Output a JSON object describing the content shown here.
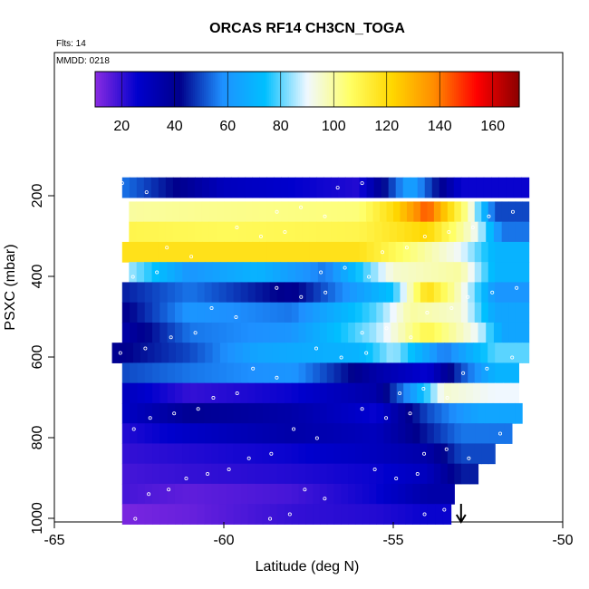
{
  "chart_data": {
    "type": "heatmap",
    "title": "ORCAS RF14 CH3CN_TOGA",
    "annotations": [
      "Flts: 14",
      "MMDD: 0218"
    ],
    "xlabel": "Latitude (deg N)",
    "ylabel": "PSXC (mbar)",
    "xlim": [
      -65,
      -50
    ],
    "ylim": [
      1000,
      200
    ],
    "x_ticks": [
      "-65",
      "-60",
      "-55",
      "-50"
    ],
    "y_ticks": [
      "200",
      "400",
      "600",
      "800",
      "1000"
    ],
    "grid": false,
    "colorbar": {
      "location": "top-inside",
      "range": [
        10,
        170
      ],
      "ticks": [
        "20",
        "40",
        "60",
        "80",
        "100",
        "120",
        "140",
        "160"
      ],
      "colormap": [
        "#8a2be2",
        "#0000cd",
        "#00008b",
        "#1e90ff",
        "#00bfff",
        "#f0f8ff",
        "#ffff66",
        "#ffd700",
        "#ff8c00",
        "#ff0000",
        "#8b0000"
      ]
    },
    "marker": {
      "type": "arrow-down",
      "latitude": -53
    },
    "rows": [
      {
        "p": 180,
        "segments": [
          [
            -63,
            55
          ],
          [
            -60,
            30
          ],
          [
            -56,
            22
          ],
          [
            -54.5,
            65
          ],
          [
            -53,
            25
          ]
        ],
        "xmin": -63.0,
        "xmax": -51.0
      },
      {
        "p": 240,
        "segments": [
          [
            -62.8,
            100
          ],
          [
            -60,
            102
          ],
          [
            -56,
            104
          ],
          [
            -55,
            120
          ],
          [
            -54,
            145
          ],
          [
            -52.8,
            100
          ],
          [
            -52,
            50
          ]
        ],
        "xmin": -62.8,
        "xmax": -51.0
      },
      {
        "p": 290,
        "segments": [
          [
            -62.8,
            110
          ],
          [
            -60,
            108
          ],
          [
            -56,
            110
          ],
          [
            -54,
            122
          ],
          [
            -52.5,
            90
          ],
          [
            -51.8,
            55
          ]
        ],
        "xmin": -62.8,
        "xmax": -51.0
      },
      {
        "p": 340,
        "segments": [
          [
            -63,
            118
          ],
          [
            -60,
            118
          ],
          [
            -56,
            118
          ],
          [
            -53,
            90
          ],
          [
            -52,
            70
          ]
        ],
        "xmin": -63.0,
        "xmax": -51.0
      },
      {
        "p": 390,
        "segments": [
          [
            -62.8,
            85
          ],
          [
            -61,
            60
          ],
          [
            -59,
            70
          ],
          [
            -57,
            55
          ],
          [
            -55,
            95
          ],
          [
            -53,
            100
          ],
          [
            -52,
            70
          ]
        ],
        "xmin": -62.8,
        "xmax": -51.0
      },
      {
        "p": 440,
        "segments": [
          [
            -63,
            45
          ],
          [
            -61,
            55
          ],
          [
            -58,
            40
          ],
          [
            -55,
            75
          ],
          [
            -54,
            120
          ],
          [
            -53,
            95
          ],
          [
            -52,
            60
          ]
        ],
        "xmin": -63.0,
        "xmax": -51.0
      },
      {
        "p": 490,
        "segments": [
          [
            -63,
            40
          ],
          [
            -61,
            60
          ],
          [
            -58,
            55
          ],
          [
            -55.5,
            80
          ],
          [
            -54.5,
            100
          ],
          [
            -53,
            95
          ],
          [
            -52,
            65
          ]
        ],
        "xmin": -63.0,
        "xmax": -51.0
      },
      {
        "p": 540,
        "segments": [
          [
            -63,
            35
          ],
          [
            -61,
            55
          ],
          [
            -58,
            60
          ],
          [
            -55.5,
            85
          ],
          [
            -54,
            110
          ],
          [
            -52.5,
            90
          ],
          [
            -51.8,
            65
          ]
        ],
        "xmin": -63.0,
        "xmax": -51.0
      },
      {
        "p": 590,
        "segments": [
          [
            -63.3,
            40
          ],
          [
            -61,
            50
          ],
          [
            -59,
            65
          ],
          [
            -56,
            70
          ],
          [
            -55,
            85
          ],
          [
            -53.5,
            55
          ],
          [
            -52,
            80
          ]
        ],
        "xmin": -63.3,
        "xmax": -51.0
      },
      {
        "p": 640,
        "segments": [
          [
            -63,
            50
          ],
          [
            -61,
            55
          ],
          [
            -58,
            60
          ],
          [
            -55.5,
            35
          ],
          [
            -54,
            25
          ],
          [
            -53,
            50
          ],
          [
            -52,
            70
          ]
        ],
        "xmin": -63.0,
        "xmax": -51.3
      },
      {
        "p": 690,
        "segments": [
          [
            -63,
            30
          ],
          [
            -61,
            20
          ],
          [
            -58,
            25
          ],
          [
            -55.5,
            35
          ],
          [
            -54.5,
            60
          ],
          [
            -53.5,
            95
          ],
          [
            -52,
            90
          ]
        ],
        "xmin": -63.0,
        "xmax": -51.3
      },
      {
        "p": 740,
        "segments": [
          [
            -63,
            28
          ],
          [
            -61,
            40
          ],
          [
            -58,
            35
          ],
          [
            -55.5,
            25
          ],
          [
            -54,
            50
          ],
          [
            -52.5,
            65
          ]
        ],
        "xmin": -63.0,
        "xmax": -51.2
      },
      {
        "p": 790,
        "segments": [
          [
            -63,
            22
          ],
          [
            -61,
            28
          ],
          [
            -58,
            35
          ],
          [
            -55.5,
            30
          ],
          [
            -54,
            45
          ],
          [
            -53,
            55
          ]
        ],
        "xmin": -63.0,
        "xmax": -51.5
      },
      {
        "p": 840,
        "segments": [
          [
            -63,
            20
          ],
          [
            -61,
            22
          ],
          [
            -58,
            25
          ],
          [
            -55.5,
            30
          ],
          [
            -54,
            35
          ],
          [
            -53,
            50
          ]
        ],
        "xmin": -63.0,
        "xmax": -52.0
      },
      {
        "p": 890,
        "segments": [
          [
            -63,
            18
          ],
          [
            -61,
            20
          ],
          [
            -58,
            22
          ],
          [
            -55.5,
            25
          ],
          [
            -54,
            30
          ],
          [
            -53,
            45
          ]
        ],
        "xmin": -63.0,
        "xmax": -52.5
      },
      {
        "p": 940,
        "segments": [
          [
            -63,
            18
          ],
          [
            -61,
            15
          ],
          [
            -58,
            18
          ],
          [
            -55.5,
            25
          ],
          [
            -54,
            35
          ]
        ],
        "xmin": -63.0,
        "xmax": -53.2
      },
      {
        "p": 990,
        "segments": [
          [
            -63,
            12
          ],
          [
            -61,
            14
          ],
          [
            -58,
            20
          ],
          [
            -55.5,
            22
          ],
          [
            -54,
            25
          ]
        ],
        "xmin": -63.0,
        "xmax": -53.3
      }
    ]
  }
}
